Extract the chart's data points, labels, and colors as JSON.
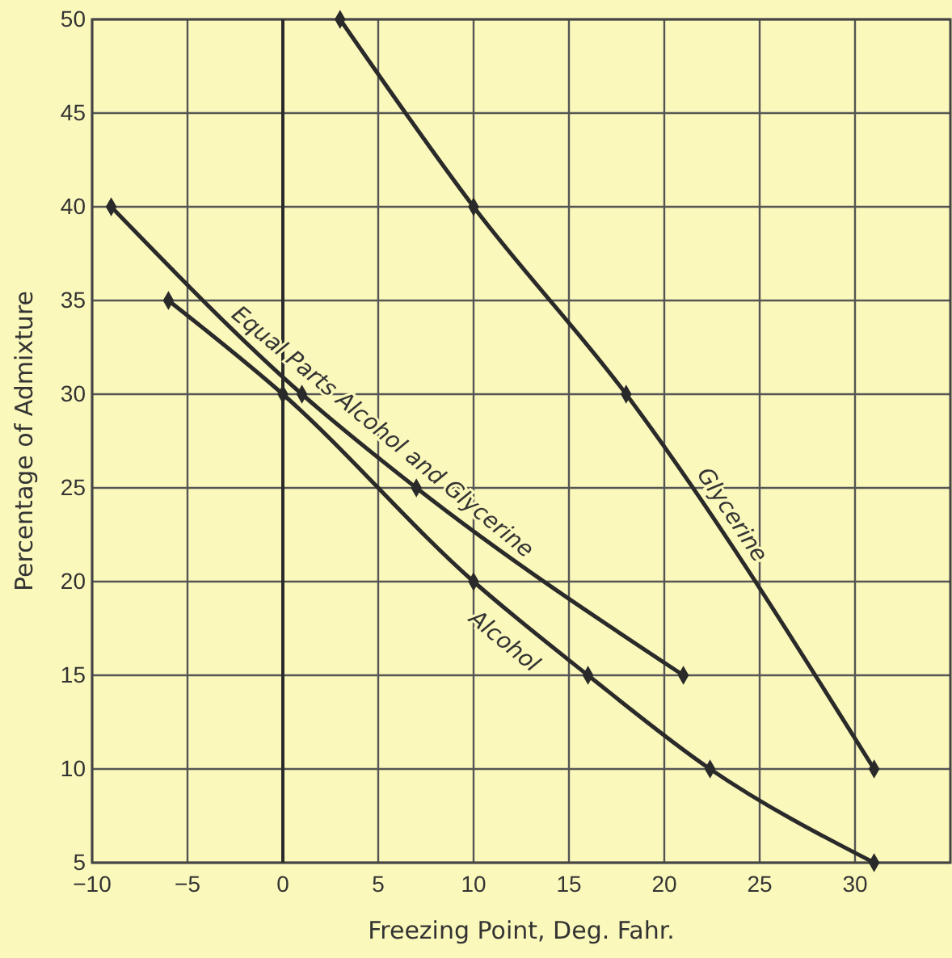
{
  "chart_data": {
    "type": "line",
    "xlabel": "Freezing Point, Deg. Fahr.",
    "ylabel": "Percentage of Admixture",
    "xlim": [
      -10,
      35
    ],
    "xticks": [
      -10,
      -5,
      0,
      5,
      10,
      15,
      20,
      25,
      30
    ],
    "ylim": [
      5,
      50
    ],
    "yticks": [
      5,
      10,
      15,
      20,
      25,
      30,
      35,
      40,
      45,
      50
    ],
    "grid": true,
    "marker": "diamond",
    "line_style": "solid",
    "ref_lines": [
      {
        "axis": "x",
        "value": 0,
        "color": "#2a2a2a"
      }
    ],
    "series": [
      {
        "name": "Glycerine",
        "x": [
          3,
          10,
          18,
          31
        ],
        "values": [
          50,
          40,
          30,
          10
        ],
        "color": "#2a2a2a"
      },
      {
        "name": "Equal Parts  Alcohol and Glycerine",
        "x": [
          -9,
          1,
          7,
          21
        ],
        "values": [
          40,
          30,
          25,
          15
        ],
        "color": "#2a2a2a"
      },
      {
        "name": "Alcohol",
        "x": [
          -6,
          0,
          10,
          16,
          22.4,
          31
        ],
        "values": [
          35,
          30,
          20,
          15,
          10,
          5
        ],
        "color": "#2a2a2a"
      }
    ]
  }
}
